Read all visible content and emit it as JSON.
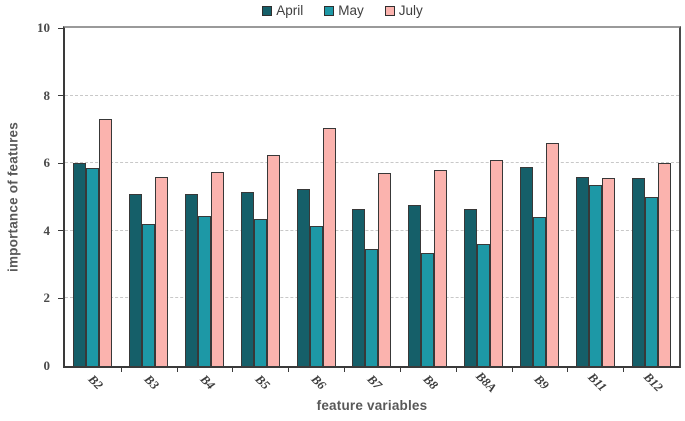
{
  "chart_data": {
    "type": "bar",
    "title": "",
    "categories": [
      "B2",
      "B3",
      "B4",
      "B5",
      "B6",
      "B7",
      "B8",
      "B8A",
      "B9",
      "B11",
      "B12"
    ],
    "series": [
      {
        "name": "April",
        "color": "#155f69",
        "values": [
          6.0,
          5.1,
          5.1,
          5.15,
          5.25,
          4.65,
          4.75,
          4.65,
          5.9,
          5.6,
          5.55
        ]
      },
      {
        "name": "May",
        "color": "#1d98a6",
        "values": [
          5.85,
          4.2,
          4.45,
          4.35,
          4.15,
          3.45,
          3.35,
          3.6,
          4.4,
          5.35,
          5.0
        ]
      },
      {
        "name": "July",
        "color": "#fbb3ae",
        "values": [
          7.3,
          5.6,
          5.75,
          6.25,
          7.05,
          5.7,
          5.8,
          6.1,
          6.6,
          5.55,
          6.0
        ]
      }
    ],
    "xlabel": "feature variables",
    "ylabel": "importance of features",
    "ylim": [
      0,
      10
    ],
    "yticks": [
      0,
      2,
      4,
      6,
      8,
      10
    ],
    "grid": "horizontal-dashed",
    "legend_position": "top",
    "bar_border_color": "#383838",
    "gridline_color": "#c8c8c8",
    "axis_color": "#3a3a3a"
  }
}
